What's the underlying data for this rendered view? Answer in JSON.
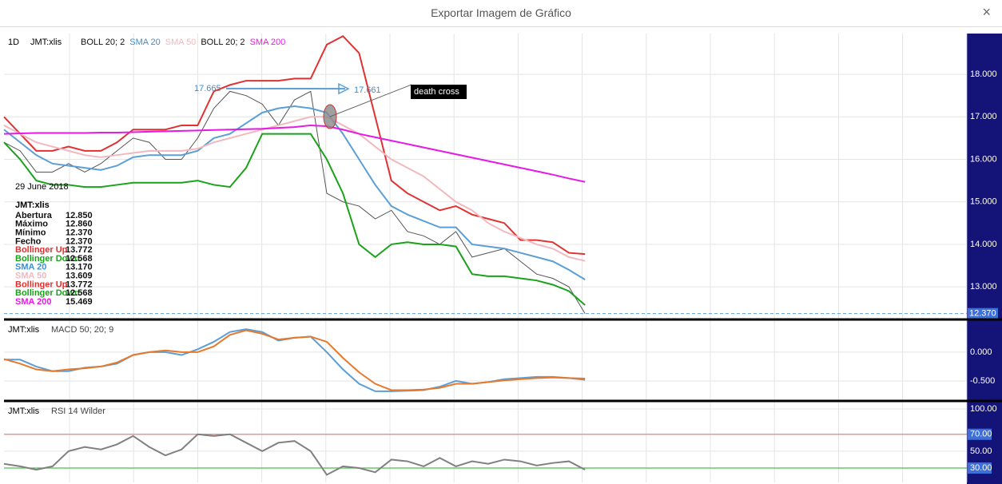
{
  "dialog": {
    "title": "Exportar Imagem de Gráfico",
    "close": "×"
  },
  "chart_data": [
    {
      "type": "line",
      "interval": "1D",
      "name": "JMT:xlis",
      "price": {
        "color": "#555555",
        "values": [
          16.4,
          16.2,
          15.7,
          15.7,
          15.9,
          15.7,
          15.9,
          16.2,
          16.5,
          16.4,
          16.0,
          16.0,
          16.5,
          17.2,
          17.6,
          17.5,
          17.3,
          16.8,
          17.4,
          17.6,
          15.2,
          15.0,
          14.9,
          14.6,
          14.8,
          14.3,
          14.2,
          14.0,
          14.3,
          13.7,
          13.8,
          13.9,
          13.6,
          13.3,
          13.2,
          13.0,
          12.37
        ]
      },
      "series": [
        {
          "name": "BOLL 20; 2",
          "color": "#e03232",
          "legend_color": "#111111",
          "values": [
            17.0,
            16.6,
            16.2,
            16.2,
            16.3,
            16.2,
            16.2,
            16.4,
            16.7,
            16.7,
            16.7,
            16.8,
            16.8,
            17.6,
            17.75,
            17.85,
            17.85,
            17.85,
            17.9,
            17.9,
            18.7,
            18.9,
            18.5,
            17.0,
            15.5,
            15.2,
            15.0,
            14.8,
            14.9,
            14.7,
            14.6,
            14.5,
            14.1,
            14.1,
            14.05,
            13.8,
            13.77
          ]
        },
        {
          "name": "SMA 20",
          "color": "#5b9fd6",
          "legend_color": "#3a8fd6",
          "values": [
            16.7,
            16.4,
            16.1,
            15.9,
            15.85,
            15.8,
            15.75,
            15.85,
            16.05,
            16.1,
            16.1,
            16.1,
            16.2,
            16.5,
            16.6,
            16.85,
            17.1,
            17.2,
            17.25,
            17.2,
            17.1,
            16.6,
            16.0,
            15.4,
            14.9,
            14.7,
            14.55,
            14.4,
            14.4,
            14.0,
            13.95,
            13.9,
            13.8,
            13.7,
            13.6,
            13.4,
            13.17
          ]
        },
        {
          "name": "SMA 50",
          "color": "#f2b8bf",
          "legend_color": "#f2b8bf",
          "values": [
            16.8,
            16.6,
            16.4,
            16.3,
            16.2,
            16.1,
            16.05,
            16.1,
            16.15,
            16.2,
            16.2,
            16.2,
            16.25,
            16.4,
            16.5,
            16.6,
            16.7,
            16.8,
            16.9,
            17.0,
            17.0,
            16.8,
            16.6,
            16.3,
            16.0,
            15.8,
            15.6,
            15.3,
            15.0,
            14.8,
            14.5,
            14.3,
            14.15,
            14.0,
            13.9,
            13.7,
            13.61
          ]
        },
        {
          "name": "BOLL 20; 2",
          "color": "#1aa31a",
          "legend_color": "#111111",
          "values": [
            16.4,
            16.0,
            15.5,
            15.4,
            15.4,
            15.35,
            15.35,
            15.4,
            15.45,
            15.45,
            15.45,
            15.45,
            15.5,
            15.4,
            15.35,
            15.8,
            16.6,
            16.6,
            16.6,
            16.6,
            16.0,
            15.2,
            14.0,
            13.7,
            14.0,
            14.05,
            14.0,
            14.0,
            13.95,
            13.3,
            13.25,
            13.25,
            13.2,
            13.15,
            13.05,
            12.9,
            12.57
          ]
        },
        {
          "name": "SMA 200",
          "color": "#e619e6",
          "legend_color": "#e619e6",
          "values": [
            16.6,
            16.61,
            16.62,
            16.62,
            16.62,
            16.62,
            16.63,
            16.63,
            16.64,
            16.65,
            16.66,
            16.67,
            16.68,
            16.69,
            16.7,
            16.71,
            16.72,
            16.74,
            16.76,
            16.8,
            16.78,
            16.7,
            16.6,
            16.52,
            16.44,
            16.36,
            16.28,
            16.2,
            16.12,
            16.04,
            15.96,
            15.88,
            15.8,
            15.72,
            15.64,
            15.55,
            15.47
          ]
        }
      ],
      "ylim": [
        12.27,
        18.96
      ],
      "yticks": [
        {
          "value": 13,
          "label": "13.000"
        },
        {
          "value": 14,
          "label": "14.000"
        },
        {
          "value": 15,
          "label": "15.000"
        },
        {
          "value": 16,
          "label": "16.000"
        },
        {
          "value": 17,
          "label": "17.000"
        },
        {
          "value": 18,
          "label": "18.000"
        }
      ],
      "last": {
        "value": 12.37,
        "label": "12.370"
      },
      "measure": [
        {
          "value": 17.665,
          "label": "17.665"
        },
        {
          "value": 17.661,
          "label": "17.661"
        }
      ],
      "annotation": "death cross",
      "info": {
        "date": "29 June 2018",
        "title": "JMT:xlis",
        "rows": [
          {
            "label": "Abertura",
            "value": "12.850",
            "color": "#111111"
          },
          {
            "label": "Máximo",
            "value": "12.860",
            "color": "#111111"
          },
          {
            "label": "Mínimo",
            "value": "12.370",
            "color": "#111111"
          },
          {
            "label": "Fecho",
            "value": "12.370",
            "color": "#111111"
          },
          {
            "label": "Bollinger Up",
            "value": "13.772",
            "color": "#e03232"
          },
          {
            "label": "Bollinger Down",
            "value": "12.568",
            "color": "#1aa31a"
          },
          {
            "label": "SMA 20",
            "value": "13.170",
            "color": "#3a8fd6"
          },
          {
            "label": "SMA 50",
            "value": "13.609",
            "color": "#f2b8bf"
          },
          {
            "label": "Bollinger Up",
            "value": "13.772",
            "color": "#e03232"
          },
          {
            "label": "Bollinger Down",
            "value": "12.568",
            "color": "#1aa31a"
          },
          {
            "label": "SMA 200",
            "value": "15.469",
            "color": "#e619e6"
          }
        ]
      }
    },
    {
      "type": "line",
      "name": "JMT:xlis",
      "title": "MACD 50; 20; 9",
      "series": [
        {
          "color": "#5b9fd6",
          "values": [
            -0.13,
            -0.13,
            -0.25,
            -0.33,
            -0.33,
            -0.27,
            -0.25,
            -0.2,
            -0.05,
            0.0,
            0.0,
            -0.05,
            0.05,
            0.18,
            0.35,
            0.4,
            0.35,
            0.2,
            0.25,
            0.27,
            0.0,
            -0.3,
            -0.55,
            -0.68,
            -0.68,
            -0.67,
            -0.66,
            -0.6,
            -0.5,
            -0.55,
            -0.52,
            -0.47,
            -0.45,
            -0.43,
            -0.43,
            -0.45,
            -0.48
          ]
        },
        {
          "color": "#e8782a",
          "values": [
            -0.12,
            -0.2,
            -0.3,
            -0.33,
            -0.3,
            -0.28,
            -0.25,
            -0.18,
            -0.05,
            0.0,
            0.03,
            0.0,
            0.0,
            0.1,
            0.3,
            0.38,
            0.32,
            0.22,
            0.25,
            0.27,
            0.18,
            -0.1,
            -0.35,
            -0.55,
            -0.66,
            -0.66,
            -0.65,
            -0.62,
            -0.55,
            -0.55,
            -0.52,
            -0.49,
            -0.47,
            -0.45,
            -0.44,
            -0.45,
            -0.46
          ]
        }
      ],
      "ylim": [
        -0.82,
        0.54
      ],
      "yticks": [
        {
          "value": -0.5,
          "label": "-0.500"
        },
        {
          "value": 0,
          "label": "0.000"
        }
      ]
    },
    {
      "type": "line",
      "name": "JMT:xlis",
      "title": "RSI 14 Wilder",
      "series": [
        {
          "color": "#808080",
          "values": [
            35,
            32,
            28,
            32,
            50,
            55,
            52,
            58,
            68,
            55,
            45,
            52,
            70,
            68,
            70,
            60,
            50,
            60,
            62,
            50,
            22,
            32,
            30,
            25,
            40,
            38,
            32,
            42,
            32,
            38,
            35,
            40,
            38,
            33,
            36,
            38,
            28
          ]
        }
      ],
      "ylim": [
        13,
        107.6
      ],
      "yticks": [
        {
          "value": 30,
          "label": "30.00"
        },
        {
          "value": 50,
          "label": "50.00"
        },
        {
          "value": 70,
          "label": "70.00"
        },
        {
          "value": 100,
          "label": "100.00"
        }
      ],
      "levels": [
        {
          "tick": 2,
          "color": "#e88080"
        },
        {
          "tick": 0,
          "color": "#4cbf4c"
        }
      ]
    }
  ]
}
